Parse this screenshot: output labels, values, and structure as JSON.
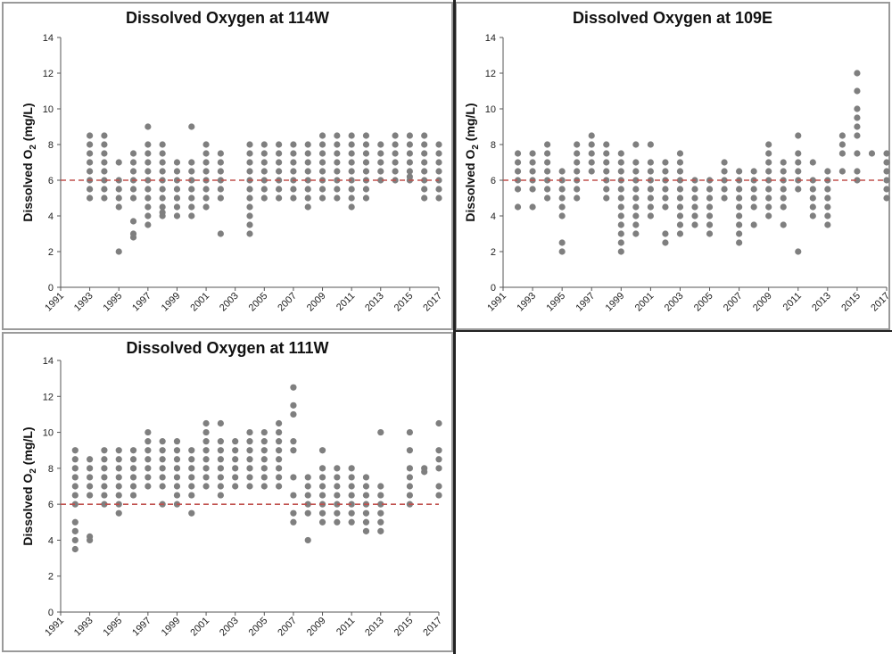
{
  "colors": {
    "points": "#7f7f7f",
    "threshold": "#c0504d",
    "axis": "#555555"
  },
  "chart_data": [
    {
      "type": "scatter",
      "title": "Dissolved Oxygen at 114W",
      "ylabel_main": "Dissolved O",
      "ylabel_sub": "2",
      "ylabel_unit": "(mg/L)",
      "ylim": [
        0,
        14
      ],
      "yticks": [
        0,
        2,
        4,
        6,
        8,
        10,
        12,
        14
      ],
      "xlim": [
        1991,
        2017
      ],
      "xticks": [
        "1991",
        "1993",
        "1995",
        "1997",
        "1999",
        "2001",
        "2003",
        "2005",
        "2007",
        "2009",
        "2011",
        "2013",
        "2015",
        "2017"
      ],
      "threshold": 6,
      "grid": false,
      "series": [
        {
          "x": 1993,
          "y": [
            5,
            5.5,
            6,
            6.5,
            7,
            7.5,
            8,
            8.5
          ]
        },
        {
          "x": 1994,
          "y": [
            5,
            5.5,
            6,
            6.5,
            7,
            7.5,
            8,
            8.5
          ]
        },
        {
          "x": 1995,
          "y": [
            2,
            4.5,
            5,
            5.5,
            6,
            7
          ]
        },
        {
          "x": 1996,
          "y": [
            2.8,
            3,
            3.7,
            5,
            5.5,
            6,
            6.5,
            7,
            7.5
          ]
        },
        {
          "x": 1997,
          "y": [
            3.5,
            4,
            4.5,
            5,
            5.5,
            6,
            6.5,
            7,
            7.5,
            8,
            9
          ]
        },
        {
          "x": 1998,
          "y": [
            4,
            4.2,
            4.5,
            5,
            5.5,
            6,
            6.5,
            7,
            7.5,
            8
          ]
        },
        {
          "x": 1999,
          "y": [
            4,
            4.5,
            5,
            5.5,
            6,
            6.5,
            7
          ]
        },
        {
          "x": 2000,
          "y": [
            4,
            4.5,
            5,
            5.5,
            6,
            6.5,
            7,
            9
          ]
        },
        {
          "x": 2001,
          "y": [
            4.5,
            5,
            5.5,
            6,
            6.5,
            7,
            7.5,
            8
          ]
        },
        {
          "x": 2002,
          "y": [
            3,
            5,
            5.5,
            6,
            6.5,
            7,
            7.5
          ]
        },
        {
          "x": 2004,
          "y": [
            3,
            3.5,
            4,
            4.5,
            5,
            5.5,
            6,
            6.5,
            7,
            7.5,
            8
          ]
        },
        {
          "x": 2005,
          "y": [
            5,
            5.5,
            6,
            6.5,
            7,
            7.5,
            8
          ]
        },
        {
          "x": 2006,
          "y": [
            5,
            5.5,
            6,
            6.5,
            7,
            7.5,
            8
          ]
        },
        {
          "x": 2007,
          "y": [
            5,
            5.5,
            6,
            6.5,
            7,
            7.5,
            8
          ]
        },
        {
          "x": 2008,
          "y": [
            4.5,
            5,
            5.5,
            6,
            6.5,
            7,
            7.5,
            8
          ]
        },
        {
          "x": 2009,
          "y": [
            5,
            5.5,
            6,
            6.5,
            7,
            7.5,
            8,
            8.5
          ]
        },
        {
          "x": 2010,
          "y": [
            5,
            5.5,
            6,
            6.5,
            7,
            7.5,
            8,
            8.5
          ]
        },
        {
          "x": 2011,
          "y": [
            4.5,
            5,
            5.5,
            6,
            6.5,
            7,
            7.5,
            8,
            8.5
          ]
        },
        {
          "x": 2012,
          "y": [
            5,
            5.5,
            6,
            6.5,
            7,
            7.5,
            8,
            8.5
          ]
        },
        {
          "x": 2013,
          "y": [
            6,
            6.5,
            7,
            7.5,
            8
          ]
        },
        {
          "x": 2014,
          "y": [
            6,
            6.5,
            7,
            7.5,
            8,
            8.5
          ]
        },
        {
          "x": 2015,
          "y": [
            6,
            6.2,
            6.5,
            7,
            7.5,
            8,
            8.5
          ]
        },
        {
          "x": 2016,
          "y": [
            5,
            5.5,
            6,
            6.5,
            7,
            7.5,
            8,
            8.5
          ]
        },
        {
          "x": 2017,
          "y": [
            5,
            5.5,
            6,
            6.5,
            7,
            7.5,
            8
          ]
        }
      ]
    },
    {
      "type": "scatter",
      "title": "Dissolved Oxygen at 109E",
      "ylabel_main": "Dissolved O",
      "ylabel_sub": "2",
      "ylabel_unit": "(mg/L)",
      "ylim": [
        0,
        14
      ],
      "yticks": [
        0,
        2,
        4,
        6,
        8,
        10,
        12,
        14
      ],
      "xlim": [
        1991,
        2017
      ],
      "xticks": [
        "1991",
        "1993",
        "1995",
        "1997",
        "1999",
        "2001",
        "2003",
        "2005",
        "2007",
        "2009",
        "2011",
        "2013",
        "2015",
        "2017"
      ],
      "threshold": 6,
      "grid": false,
      "series": [
        {
          "x": 1992,
          "y": [
            4.5,
            5.5,
            6,
            6.5,
            7,
            7.5
          ]
        },
        {
          "x": 1993,
          "y": [
            4.5,
            5.5,
            6,
            6.5,
            7,
            7.5
          ]
        },
        {
          "x": 1994,
          "y": [
            5,
            5.5,
            6,
            6.5,
            7,
            7.5,
            8
          ]
        },
        {
          "x": 1995,
          "y": [
            2,
            2.5,
            4,
            4.5,
            5,
            5.5,
            6,
            6.5
          ]
        },
        {
          "x": 1996,
          "y": [
            5,
            5.5,
            6,
            6.5,
            7,
            7.5,
            8
          ]
        },
        {
          "x": 1997,
          "y": [
            6.5,
            7,
            7.5,
            8,
            8.5
          ]
        },
        {
          "x": 1998,
          "y": [
            5,
            5.5,
            6,
            6.5,
            7,
            7.5,
            8
          ]
        },
        {
          "x": 1999,
          "y": [
            2,
            2.5,
            3,
            3.5,
            4,
            4.5,
            5,
            5.5,
            6,
            6.5,
            7,
            7.5
          ]
        },
        {
          "x": 2000,
          "y": [
            3,
            3.5,
            4,
            4.5,
            5,
            5.5,
            6,
            6.5,
            7,
            8
          ]
        },
        {
          "x": 2001,
          "y": [
            4,
            4.5,
            5,
            5.5,
            6,
            6.5,
            7,
            8
          ]
        },
        {
          "x": 2002,
          "y": [
            2.5,
            3,
            4.5,
            5,
            5.5,
            6,
            6.5,
            7
          ]
        },
        {
          "x": 2003,
          "y": [
            3,
            3.5,
            4,
            4.5,
            5,
            5.5,
            6,
            6.5,
            7,
            7.5
          ]
        },
        {
          "x": 2004,
          "y": [
            3.5,
            4,
            4.5,
            5,
            5.5,
            6
          ]
        },
        {
          "x": 2005,
          "y": [
            3,
            3.5,
            4,
            4.5,
            5,
            5.5,
            6
          ]
        },
        {
          "x": 2006,
          "y": [
            5,
            5.5,
            6,
            6.5,
            7
          ]
        },
        {
          "x": 2007,
          "y": [
            2.5,
            3,
            3.5,
            4,
            4.5,
            5,
            5.5,
            6,
            6.5
          ]
        },
        {
          "x": 2008,
          "y": [
            3.5,
            4.5,
            5,
            5.5,
            6,
            6.5
          ]
        },
        {
          "x": 2009,
          "y": [
            4,
            4.5,
            5,
            5.5,
            6,
            6.5,
            7,
            7.5,
            8
          ]
        },
        {
          "x": 2010,
          "y": [
            3.5,
            4.5,
            5,
            5.5,
            6,
            6.5,
            7
          ]
        },
        {
          "x": 2011,
          "y": [
            2,
            5.5,
            6,
            6.5,
            7,
            7.5,
            8.5
          ]
        },
        {
          "x": 2012,
          "y": [
            4,
            4.5,
            5,
            5.5,
            6,
            7
          ]
        },
        {
          "x": 2013,
          "y": [
            3.5,
            4,
            4.5,
            5,
            5.5,
            6,
            6.5
          ]
        },
        {
          "x": 2014,
          "y": [
            6.5,
            7.5,
            8,
            8.5
          ]
        },
        {
          "x": 2015,
          "y": [
            6,
            6.5,
            7.5,
            8.5,
            9,
            9.5,
            10,
            11,
            12
          ]
        },
        {
          "x": 2016,
          "y": [
            7.5
          ]
        },
        {
          "x": 2017,
          "y": [
            5,
            5.5,
            6,
            6.5,
            7,
            7.5
          ]
        }
      ]
    },
    {
      "type": "scatter",
      "title": "Dissolved Oxygen at 111W",
      "ylabel_main": "Dissolved O",
      "ylabel_sub": "2",
      "ylabel_unit": "(mg/L)",
      "ylim": [
        0,
        14
      ],
      "yticks": [
        0,
        2,
        4,
        6,
        8,
        10,
        12,
        14
      ],
      "xlim": [
        1991,
        2017
      ],
      "xticks": [
        "1991",
        "1993",
        "1995",
        "1997",
        "1999",
        "2001",
        "2003",
        "2005",
        "2007",
        "2009",
        "2011",
        "2013",
        "2015",
        "2017"
      ],
      "threshold": 6,
      "grid": false,
      "series": [
        {
          "x": 1992,
          "y": [
            3.5,
            4,
            4.5,
            5,
            6,
            6.5,
            7,
            7.5,
            8,
            8.5,
            9
          ]
        },
        {
          "x": 1993,
          "y": [
            4,
            4.2,
            6.5,
            7,
            7.5,
            8,
            8.5
          ]
        },
        {
          "x": 1994,
          "y": [
            6,
            6.5,
            7,
            7.5,
            8,
            8.5,
            9
          ]
        },
        {
          "x": 1995,
          "y": [
            5.5,
            6,
            6.5,
            7,
            7.5,
            8,
            8.5,
            9
          ]
        },
        {
          "x": 1996,
          "y": [
            6.5,
            7,
            7.5,
            8,
            8.5,
            9
          ]
        },
        {
          "x": 1997,
          "y": [
            7,
            7.5,
            8,
            8.5,
            9,
            9.5,
            10
          ]
        },
        {
          "x": 1998,
          "y": [
            6,
            7,
            7.5,
            8,
            8.5,
            9,
            9.5
          ]
        },
        {
          "x": 1999,
          "y": [
            6,
            6.5,
            7,
            7.5,
            8,
            8.5,
            9,
            9.5
          ]
        },
        {
          "x": 2000,
          "y": [
            5.5,
            6.5,
            7,
            7.5,
            8,
            8.5,
            9
          ]
        },
        {
          "x": 2001,
          "y": [
            7,
            7.5,
            8,
            8.5,
            9,
            9.5,
            10,
            10.5
          ]
        },
        {
          "x": 2002,
          "y": [
            6.5,
            7,
            7.5,
            8,
            8.5,
            9,
            9.5,
            10.5
          ]
        },
        {
          "x": 2003,
          "y": [
            7,
            7.5,
            8,
            8.5,
            9,
            9.5
          ]
        },
        {
          "x": 2004,
          "y": [
            7,
            7.5,
            8,
            8.5,
            9,
            9.5,
            10
          ]
        },
        {
          "x": 2005,
          "y": [
            7,
            7.5,
            8,
            8.5,
            9,
            9.5,
            10
          ]
        },
        {
          "x": 2006,
          "y": [
            7,
            7.5,
            8,
            8.5,
            9,
            9.5,
            10,
            10.5
          ]
        },
        {
          "x": 2007,
          "y": [
            5,
            5.5,
            6.5,
            7.5,
            9,
            9.5,
            11,
            11.5,
            12.5
          ]
        },
        {
          "x": 2008,
          "y": [
            4,
            5.5,
            6,
            6.5,
            7,
            7.5
          ]
        },
        {
          "x": 2009,
          "y": [
            5,
            5.5,
            6,
            6.5,
            7,
            7.5,
            8,
            9
          ]
        },
        {
          "x": 2010,
          "y": [
            5,
            5.5,
            6,
            6.5,
            7,
            7.5,
            8
          ]
        },
        {
          "x": 2011,
          "y": [
            5,
            5.5,
            6,
            6.5,
            7,
            7.5,
            8
          ]
        },
        {
          "x": 2012,
          "y": [
            4.5,
            5,
            5.5,
            6,
            6.5,
            7,
            7.5
          ]
        },
        {
          "x": 2013,
          "y": [
            4.5,
            5,
            5.5,
            6,
            6.5,
            7,
            10
          ]
        },
        {
          "x": 2015,
          "y": [
            6,
            6.5,
            7,
            7.5,
            8,
            9,
            10
          ]
        },
        {
          "x": 2016,
          "y": [
            7.8,
            8
          ]
        },
        {
          "x": 2017,
          "y": [
            6.5,
            7,
            8,
            8.5,
            9,
            10.5
          ]
        }
      ]
    }
  ]
}
